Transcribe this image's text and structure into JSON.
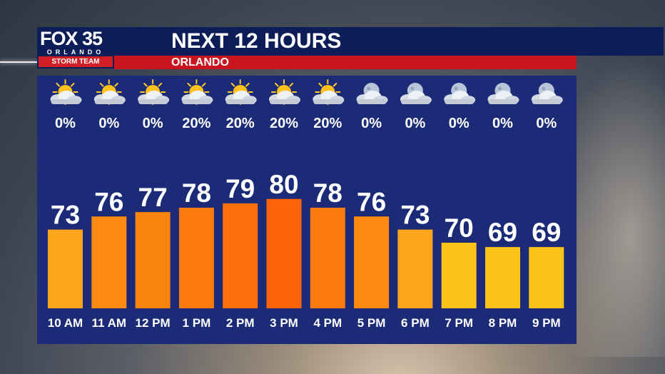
{
  "header": {
    "logo": {
      "station": "FOX 35",
      "city": "ORLANDO",
      "team": "STORM TEAM"
    },
    "title": "NEXT 12 HOURS",
    "location": "ORLANDO"
  },
  "colors": {
    "panel": "#1b2b78",
    "header_blue": "#0c1d57",
    "header_red": "#c8151f",
    "bar_scale": {
      "69": "#fcc31a",
      "70": "#fcc31a",
      "73": "#fca51b",
      "76": "#fc8a12",
      "77": "#fc8510",
      "78": "#fc7a0e",
      "79": "#fc6f0b",
      "80": "#fc6307"
    }
  },
  "chart_data": {
    "type": "bar",
    "categories": [
      "10 AM",
      "11 AM",
      "12 PM",
      "1 PM",
      "2 PM",
      "3 PM",
      "4 PM",
      "5 PM",
      "6 PM",
      "7 PM",
      "8 PM",
      "9 PM"
    ],
    "values": [
      73,
      76,
      77,
      78,
      79,
      80,
      78,
      76,
      73,
      70,
      69,
      69
    ],
    "precip": [
      "0%",
      "0%",
      "0%",
      "20%",
      "20%",
      "20%",
      "20%",
      "0%",
      "0%",
      "0%",
      "0%",
      "0%"
    ],
    "icons": [
      "partly-sunny-icon",
      "partly-sunny-icon",
      "partly-sunny-icon",
      "partly-sunny-icon",
      "partly-sunny-icon",
      "partly-sunny-icon",
      "partly-sunny-icon",
      "partly-cloudy-night-icon",
      "partly-cloudy-night-icon",
      "partly-cloudy-night-icon",
      "partly-cloudy-night-icon",
      "partly-cloudy-night-icon"
    ],
    "title": "NEXT 12 HOURS",
    "xlabel": "",
    "ylabel": "",
    "ylim": [
      55,
      82
    ]
  }
}
